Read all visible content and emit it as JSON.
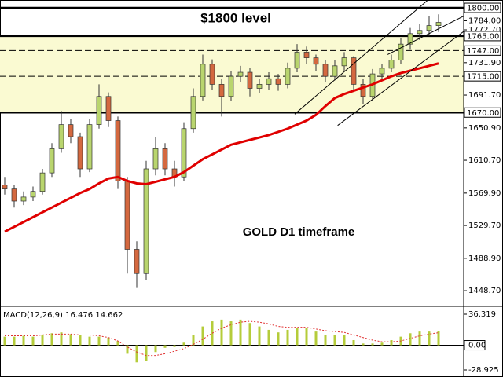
{
  "chart_data": {
    "type": "candlestick",
    "symbol_caption": "GOLD D1 timeframe",
    "level_caption": "$1800 level",
    "ylim": [
      1431.2,
      1809.8
    ],
    "yticks": [
      {
        "value": 1784,
        "label": "1784.00"
      },
      {
        "value": 1772.7,
        "label": "1772.70"
      },
      {
        "value": 1731.9,
        "label": "1731.90"
      },
      {
        "value": 1691.7,
        "label": "1691.70"
      },
      {
        "value": 1650.9,
        "label": "1650.90"
      },
      {
        "value": 1610.7,
        "label": "1610.70"
      },
      {
        "value": 1569.9,
        "label": "1569.90"
      },
      {
        "value": 1529.7,
        "label": "1529.70"
      },
      {
        "value": 1488.9,
        "label": "1488.90"
      },
      {
        "value": 1448.7,
        "label": "1448.70"
      }
    ],
    "zone": {
      "from": 1670,
      "to": 1765,
      "color": "#fafad2"
    },
    "levels": [
      {
        "value": 1800,
        "label": "1800.00",
        "style": "thick"
      },
      {
        "value": 1765,
        "label": "1765.00",
        "style": "thick"
      },
      {
        "value": 1747,
        "label": "1747.00",
        "style": "dashed"
      },
      {
        "value": 1715,
        "label": "1715.00",
        "style": "dashed"
      },
      {
        "value": 1670,
        "label": "1670.00",
        "style": "thick"
      }
    ],
    "up_color": "#b9d56e",
    "down_color": "#d4683f",
    "candles": [
      [
        1580,
        1590,
        1568,
        1575
      ],
      [
        1575,
        1580,
        1552,
        1560
      ],
      [
        1560,
        1572,
        1555,
        1565
      ],
      [
        1565,
        1578,
        1560,
        1572
      ],
      [
        1572,
        1600,
        1568,
        1595
      ],
      [
        1595,
        1632,
        1590,
        1625
      ],
      [
        1625,
        1672,
        1620,
        1655
      ],
      [
        1655,
        1662,
        1632,
        1640
      ],
      [
        1640,
        1645,
        1590,
        1600
      ],
      [
        1600,
        1662,
        1596,
        1655
      ],
      [
        1655,
        1705,
        1650,
        1690
      ],
      [
        1690,
        1695,
        1652,
        1660
      ],
      [
        1660,
        1665,
        1575,
        1585
      ],
      [
        1585,
        1590,
        1470,
        1500
      ],
      [
        1500,
        1510,
        1452,
        1470
      ],
      [
        1470,
        1610,
        1462,
        1600
      ],
      [
        1600,
        1640,
        1592,
        1625
      ],
      [
        1625,
        1632,
        1592,
        1600
      ],
      [
        1600,
        1610,
        1578,
        1590
      ],
      [
        1590,
        1658,
        1585,
        1650
      ],
      [
        1650,
        1700,
        1645,
        1690
      ],
      [
        1690,
        1742,
        1685,
        1730
      ],
      [
        1730,
        1736,
        1698,
        1705
      ],
      [
        1705,
        1712,
        1665,
        1690
      ],
      [
        1690,
        1722,
        1684,
        1715
      ],
      [
        1715,
        1728,
        1708,
        1720
      ],
      [
        1720,
        1725,
        1690,
        1700
      ],
      [
        1700,
        1712,
        1694,
        1705
      ],
      [
        1705,
        1720,
        1698,
        1712
      ],
      [
        1712,
        1718,
        1697,
        1705
      ],
      [
        1705,
        1732,
        1700,
        1725
      ],
      [
        1725,
        1755,
        1720,
        1745
      ],
      [
        1745,
        1752,
        1730,
        1738
      ],
      [
        1738,
        1742,
        1722,
        1730
      ],
      [
        1730,
        1735,
        1708,
        1715
      ],
      [
        1715,
        1735,
        1710,
        1728
      ],
      [
        1728,
        1745,
        1722,
        1738
      ],
      [
        1738,
        1740,
        1698,
        1705
      ],
      [
        1705,
        1712,
        1680,
        1690
      ],
      [
        1690,
        1724,
        1685,
        1718
      ],
      [
        1718,
        1730,
        1712,
        1725
      ],
      [
        1725,
        1742,
        1720,
        1735
      ],
      [
        1735,
        1762,
        1730,
        1755
      ],
      [
        1755,
        1775,
        1748,
        1768
      ],
      [
        1768,
        1780,
        1760,
        1772
      ],
      [
        1772,
        1790,
        1765,
        1778
      ],
      [
        1778,
        1792,
        1770,
        1782
      ]
    ],
    "moving_average": {
      "color": "#e00000",
      "values": [
        1522,
        1528,
        1534,
        1540,
        1546,
        1552,
        1558,
        1564,
        1570,
        1575,
        1582,
        1588,
        1590,
        1585,
        1582,
        1581,
        1584,
        1587,
        1590,
        1596,
        1604,
        1612,
        1618,
        1624,
        1630,
        1633,
        1636,
        1639,
        1642,
        1646,
        1650,
        1655,
        1660,
        1667,
        1678,
        1688,
        1693,
        1697,
        1701,
        1705,
        1710,
        1715,
        1719,
        1722,
        1725,
        1728,
        1731
      ]
    },
    "trendlines": [
      [
        [
          30.75,
          1668
        ],
        [
          44.9,
          1810
        ]
      ],
      [
        [
          35.3,
          1654
        ],
        [
          48.7,
          1771
        ]
      ],
      [
        [
          40.6,
          1742
        ],
        [
          48.7,
          1790
        ]
      ]
    ],
    "macd": {
      "name": "MACD(12,26,9)",
      "ylim": [
        -28.925,
        36.319
      ],
      "yticks": [
        36.319,
        {
          "value": 0,
          "label": "0.00"
        },
        -28.925
      ],
      "bar_color": "#b5cc3a",
      "signal_color": "#e03030",
      "histogram": [
        10,
        10,
        11,
        10,
        12,
        14,
        15,
        13,
        12,
        10,
        10,
        9,
        5,
        -10,
        -20,
        -18,
        -8,
        -3,
        -2,
        3,
        12,
        22,
        28,
        30,
        28,
        30,
        26,
        22,
        18,
        15,
        18,
        20,
        20,
        16,
        12,
        12,
        12,
        6,
        2,
        2,
        3,
        6,
        10,
        14,
        16,
        16,
        16.476
      ],
      "signal": [
        11,
        11,
        11,
        11,
        12,
        13,
        13,
        13,
        12,
        12,
        11,
        9,
        5,
        -2,
        -8,
        -12,
        -12,
        -10,
        -7,
        -4,
        1,
        7,
        14,
        20,
        24,
        27,
        28,
        27,
        25,
        22,
        21,
        21,
        21,
        19,
        17,
        16,
        15,
        12,
        9,
        6,
        4,
        4,
        5,
        8,
        11,
        13,
        14.662
      ]
    }
  }
}
